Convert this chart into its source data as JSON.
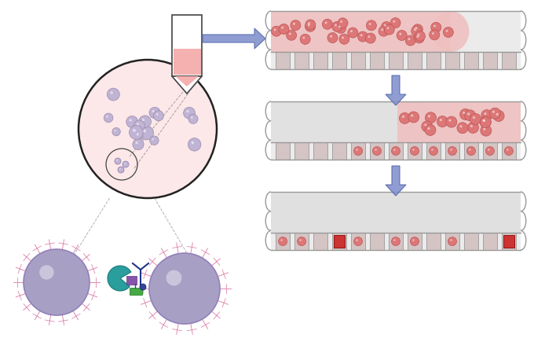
{
  "bg_color": "#ffffff",
  "tube_color": "#ffffff",
  "tube_border": "#444444",
  "tube_liquid_color": "#f5b0b0",
  "pink_light": "#fce8e8",
  "bead_color_small": "#c0b4d4",
  "bead_color_large": "#a8a0c4",
  "channel_bg": "#ebebeb",
  "channel_border": "#999999",
  "arrow_color": "#8090cc",
  "well_bg": "#d4c4c4",
  "well_border": "#999999",
  "red_bead": "#cc3333",
  "pink_bead": "#dd7777",
  "pink_channel": "#f0c0c0",
  "gray_channel": "#e0e0e0"
}
